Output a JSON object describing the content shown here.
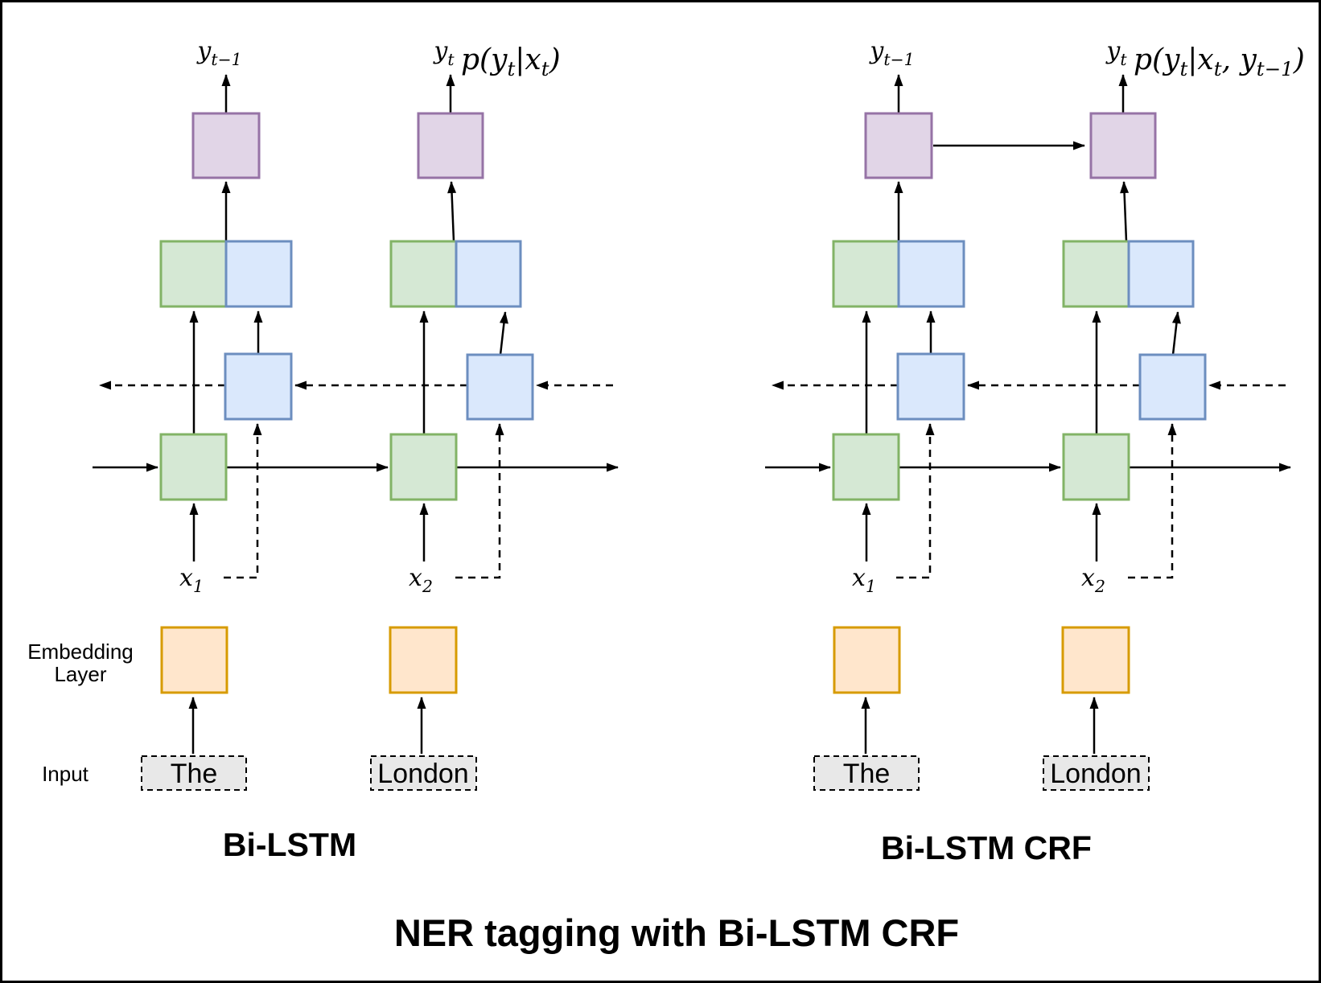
{
  "caption": "NER tagging with Bi-LSTM CRF",
  "side_labels": {
    "embedding_line1": "Embedding",
    "embedding_line2": "Layer",
    "input": "Input"
  },
  "colors": {
    "forward_lstm_fill": "#d5e8d4",
    "forward_lstm_stroke": "#82b366",
    "backward_lstm_fill": "#dae8fc",
    "backward_lstm_stroke": "#6c8ebf",
    "output_fill": "#e1d5e7",
    "output_stroke": "#9673a6",
    "embedding_fill": "#ffe6cc",
    "embedding_stroke": "#d79b00",
    "input_word_fill": "#e8e8e8",
    "input_word_stroke": "#000000",
    "line": "#000000"
  },
  "diagrams": [
    {
      "title": "Bi-LSTM",
      "annotation": [
        {
          "t": "p(y"
        },
        {
          "t": "t",
          "sub": true
        },
        {
          "t": "|x"
        },
        {
          "t": "t",
          "sub": true
        },
        {
          "t": ")"
        }
      ],
      "output_label_prev": [
        {
          "t": "y"
        },
        {
          "t": "t−1",
          "sub": true
        }
      ],
      "output_label_cur": [
        {
          "t": "y"
        },
        {
          "t": "t",
          "sub": true
        }
      ],
      "feature_label_1": [
        {
          "t": "x"
        },
        {
          "t": "1",
          "sub": true
        }
      ],
      "feature_label_2": [
        {
          "t": "x"
        },
        {
          "t": "2",
          "sub": true
        }
      ],
      "input_word_1": "The",
      "input_word_2": "London",
      "crf_connection": false
    },
    {
      "title": "Bi-LSTM CRF",
      "annotation": [
        {
          "t": "p(y"
        },
        {
          "t": "t",
          "sub": true
        },
        {
          "t": "|x"
        },
        {
          "t": "t",
          "sub": true
        },
        {
          "t": ", y"
        },
        {
          "t": "t−1",
          "sub": true
        },
        {
          "t": ")"
        }
      ],
      "output_label_prev": [
        {
          "t": "y"
        },
        {
          "t": "t−1",
          "sub": true
        }
      ],
      "output_label_cur": [
        {
          "t": "y"
        },
        {
          "t": "t",
          "sub": true
        }
      ],
      "feature_label_1": [
        {
          "t": "x"
        },
        {
          "t": "1",
          "sub": true
        }
      ],
      "feature_label_2": [
        {
          "t": "x"
        },
        {
          "t": "2",
          "sub": true
        }
      ],
      "input_word_1": "The",
      "input_word_2": "London",
      "crf_connection": true
    }
  ]
}
